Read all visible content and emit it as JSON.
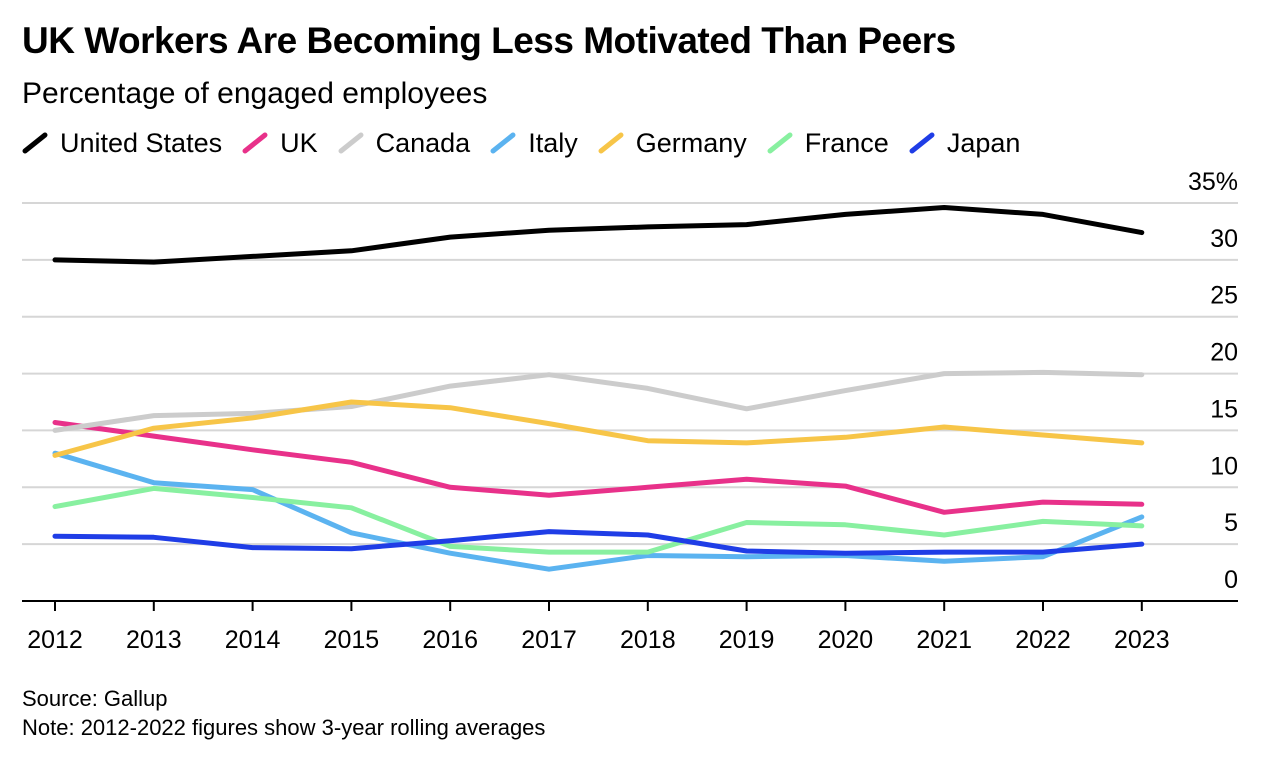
{
  "title": "UK Workers Are Becoming Less Motivated Than Peers",
  "subtitle": "Percentage of engaged employees",
  "footer": {
    "source": "Source: Gallup",
    "note": "Note: 2012-2022 figures show 3-year rolling averages"
  },
  "chart_data": {
    "type": "line",
    "title": "UK Workers Are Becoming Less Motivated Than Peers",
    "subtitle": "Percentage of engaged employees",
    "x": [
      "2012",
      "2013",
      "2014",
      "2015",
      "2016",
      "2017",
      "2018",
      "2019",
      "2020",
      "2021",
      "2022",
      "2023"
    ],
    "ylim": [
      0,
      35
    ],
    "yticks": [
      0,
      5,
      10,
      15,
      20,
      25,
      30,
      35
    ],
    "ytick_labels": [
      "0",
      "5",
      "10",
      "15",
      "20",
      "25",
      "30",
      "35%"
    ],
    "grid": true,
    "y_axis_position": "right",
    "legend_position": "top-left",
    "series": [
      {
        "name": "United States",
        "color": "#000000",
        "values": [
          30.0,
          29.8,
          30.3,
          30.8,
          32.0,
          32.6,
          32.9,
          33.1,
          34.0,
          34.6,
          34.0,
          32.4
        ]
      },
      {
        "name": "UK",
        "color": "#e8318a",
        "values": [
          15.7,
          14.5,
          13.3,
          12.2,
          10.0,
          9.3,
          10.0,
          10.7,
          10.1,
          7.8,
          8.7,
          8.5
        ]
      },
      {
        "name": "Canada",
        "color": "#cccccc",
        "values": [
          15.0,
          16.3,
          16.5,
          17.1,
          18.9,
          19.9,
          18.7,
          16.9,
          18.5,
          20.0,
          20.1,
          19.9
        ]
      },
      {
        "name": "Italy",
        "color": "#5bb3f0",
        "values": [
          13.0,
          10.4,
          9.8,
          6.0,
          4.2,
          2.8,
          4.0,
          3.9,
          4.0,
          3.5,
          3.9,
          7.4
        ]
      },
      {
        "name": "Germany",
        "color": "#f7c548",
        "values": [
          12.8,
          15.2,
          16.1,
          17.5,
          17.0,
          15.6,
          14.1,
          13.9,
          14.4,
          15.3,
          14.6,
          13.9
        ]
      },
      {
        "name": "France",
        "color": "#88f0a0",
        "values": [
          8.3,
          9.9,
          9.1,
          8.2,
          4.8,
          4.3,
          4.3,
          6.9,
          6.7,
          5.8,
          7.0,
          6.6
        ]
      },
      {
        "name": "Japan",
        "color": "#1f3de6",
        "values": [
          5.7,
          5.6,
          4.7,
          4.6,
          5.3,
          6.1,
          5.8,
          4.4,
          4.2,
          4.3,
          4.3,
          5.0
        ]
      }
    ]
  }
}
